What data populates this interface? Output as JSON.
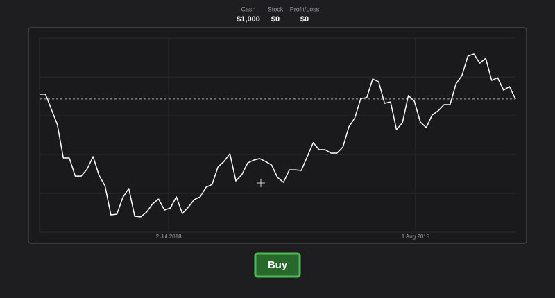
{
  "header": {
    "stats": [
      {
        "label": "Cash",
        "value": "$1,000"
      },
      {
        "label": "Stock",
        "value": "$0"
      },
      {
        "label": "Profit/Loss",
        "value": "$0"
      }
    ]
  },
  "chart_data": {
    "type": "line",
    "color": "#ffffff",
    "grid": true,
    "values": [
      71.1,
      71.1,
      63.2,
      55.4,
      38.2,
      38.2,
      28.9,
      28.9,
      32.5,
      38.9,
      29.3,
      23.9,
      8.9,
      9.3,
      17.9,
      22.5,
      8.2,
      7.9,
      10.4,
      14.6,
      17.1,
      11.4,
      12.5,
      18.2,
      9.6,
      12.9,
      16.8,
      18.2,
      23.2,
      24.6,
      33.6,
      36.4,
      40.4,
      26.4,
      29.6,
      35.7,
      37.1,
      37.9,
      36.4,
      34.6,
      28.2,
      25.7,
      32.1,
      32.1,
      31.8,
      38.9,
      46.1,
      42.5,
      42.5,
      40.7,
      40.7,
      43.9,
      54.3,
      58.9,
      68.9,
      69.3,
      78.9,
      77.5,
      66.4,
      67.1,
      52.9,
      56.4,
      70.4,
      67.5,
      56.8,
      53.9,
      60.4,
      62.5,
      65.7,
      65.7,
      76.4,
      80.7,
      90.7,
      91.8,
      87.1,
      89.6,
      78.2,
      79.6,
      73.2,
      75.0,
      68.6
    ],
    "xlim": [
      0,
      80
    ],
    "xticks": [
      {
        "value": 21.7,
        "label": "2 Jul 2018"
      },
      {
        "value": 63.2,
        "label": "1 Aug 2018"
      }
    ],
    "ylim": [
      0,
      100
    ],
    "yticks": [
      0,
      20,
      40,
      60,
      80,
      100
    ]
  },
  "button": {
    "label": "Buy"
  }
}
